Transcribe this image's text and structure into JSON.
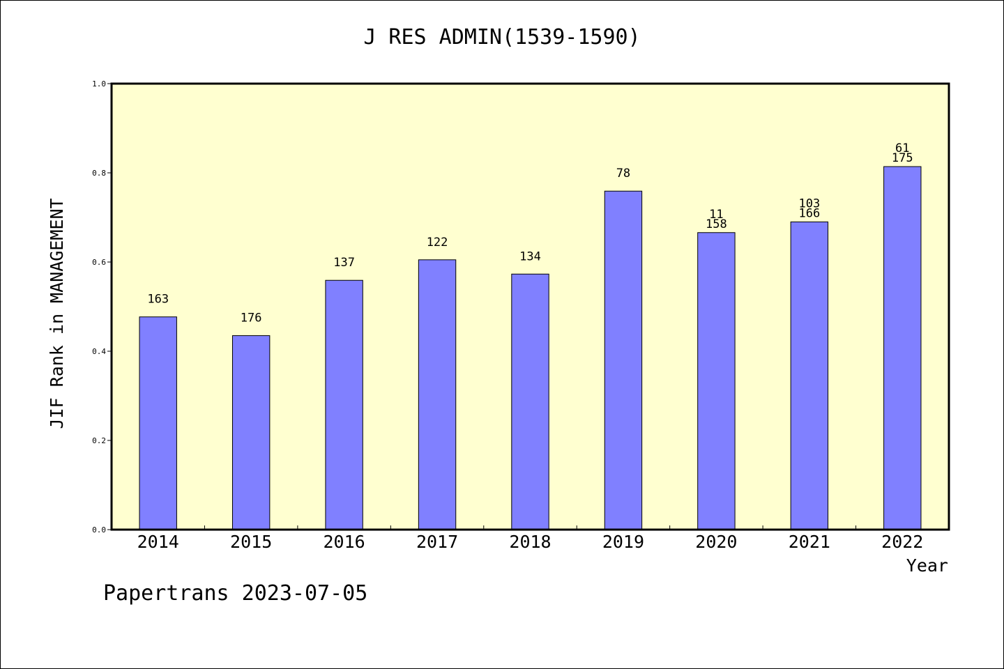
{
  "chart_data": {
    "type": "bar",
    "title": "J RES ADMIN(1539-1590)",
    "xlabel": "Year",
    "ylabel": "JIF Rank in MANAGEMENT",
    "ylim": [
      0,
      1.0
    ],
    "yticks": [
      "0.0",
      "0.2",
      "0.4",
      "0.6",
      "0.8",
      "1.0"
    ],
    "grid": false,
    "categories": [
      "2014",
      "2015",
      "2016",
      "2017",
      "2018",
      "2019",
      "2020",
      "2021",
      "2022"
    ],
    "values": [
      0.477,
      0.435,
      0.559,
      0.605,
      0.573,
      0.759,
      0.666,
      0.69,
      0.814
    ],
    "bar_labels": [
      [
        "163"
      ],
      [
        "176"
      ],
      [
        "137"
      ],
      [
        "122"
      ],
      [
        "134"
      ],
      [
        "78"
      ],
      [
        "11",
        "158"
      ],
      [
        "103",
        "166"
      ],
      [
        "61",
        "175"
      ]
    ],
    "colors": {
      "bar": "#8080ff",
      "plot_background": "#ffffd0",
      "axes": "#000000"
    }
  },
  "footer": "Papertrans 2023-07-05"
}
